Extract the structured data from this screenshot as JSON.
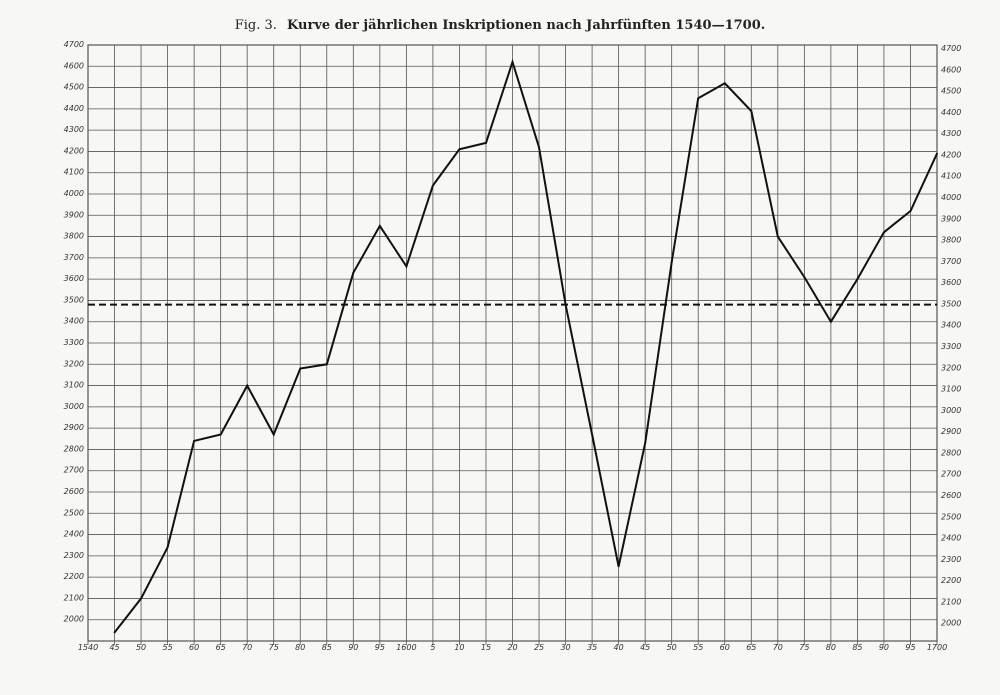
{
  "title": {
    "fig_label": "Fig. 3.",
    "text": "Kurve der jährlichen Inskriptionen nach Jahrfünften 1540—1700."
  },
  "colors": {
    "grid": "#555555",
    "line": "#111111",
    "background": "#f7f7f5"
  },
  "chart_data": {
    "type": "line",
    "title": "Kurve der jährlichen Inskriptionen nach Jahrfünften 1540—1700.",
    "xlabel": "",
    "ylabel": "",
    "x_tick_labels": [
      "1540",
      "45",
      "50",
      "55",
      "60",
      "65",
      "70",
      "75",
      "80",
      "85",
      "90",
      "95",
      "1600",
      "5",
      "10",
      "15",
      "20",
      "25",
      "30",
      "35",
      "40",
      "45",
      "50",
      "55",
      "60",
      "65",
      "70",
      "75",
      "80",
      "85",
      "90",
      "95",
      "1700"
    ],
    "y_tick_labels": [
      "4700",
      "4600",
      "4500",
      "4400",
      "4300",
      "4200",
      "4100",
      "4000",
      "3900",
      "3800",
      "3700",
      "3600",
      "3500",
      "3400",
      "3300",
      "3200",
      "3100",
      "3000",
      "2900",
      "2800",
      "2700",
      "2600",
      "2500",
      "2400",
      "2300",
      "2200",
      "2100",
      "2000"
    ],
    "ylim": [
      1900,
      4700
    ],
    "grid": true,
    "y_ticks_both_sides": true,
    "series": [
      {
        "style": "solid",
        "x": [
          1545,
          1550,
          1555,
          1560,
          1565,
          1570,
          1575,
          1580,
          1585,
          1590,
          1595,
          1600,
          1605,
          1610,
          1615,
          1620,
          1625,
          1630,
          1635,
          1640,
          1645,
          1650,
          1655,
          1660,
          1665,
          1670,
          1675,
          1680,
          1685,
          1690,
          1695,
          1700
        ],
        "y": [
          1940,
          2100,
          2340,
          2840,
          2870,
          3100,
          2870,
          3180,
          3200,
          3630,
          3850,
          3660,
          4040,
          4210,
          4240,
          4620,
          4220,
          3480,
          2870,
          2250,
          2830,
          3680,
          4450,
          4520,
          4390,
          3800,
          3610,
          3400,
          3600,
          3820,
          3920,
          4190
        ]
      }
    ],
    "reference_lines": [
      {
        "style": "dashed",
        "y": 3480
      }
    ]
  }
}
